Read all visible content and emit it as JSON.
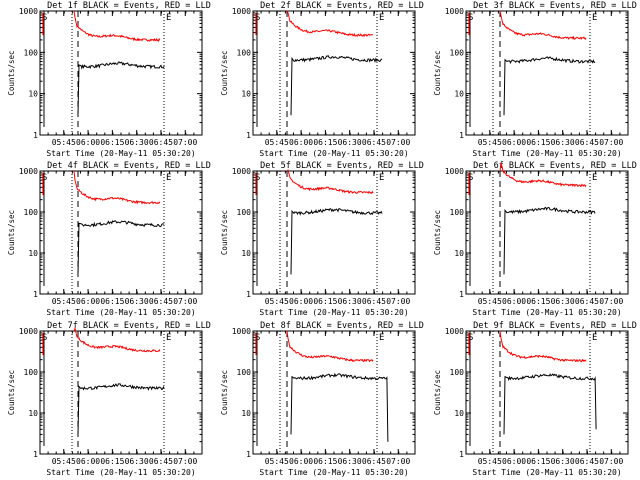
{
  "figure": {
    "background": "#ffffff",
    "axis_color": "#000000",
    "events_color": "#000000",
    "lld_color": "#ff0000"
  },
  "chart_data": [
    {
      "type": "line",
      "title": "Det 1f BLACK = Events, RED = LLD",
      "xlabel": "Start Time (20-May-11 05:30:20)",
      "ylabel": "Counts/sec",
      "xticks": [
        "05:45",
        "06:00",
        "06:15",
        "06:30",
        "06:45",
        "07:00"
      ],
      "yticks": [
        "1",
        "10",
        "100",
        "1000"
      ],
      "ylim": [
        1,
        1000
      ],
      "marker_S": "S",
      "marker_E": "E",
      "shape": "A",
      "lld_level": 200,
      "events_level": 45,
      "events_end": "06:47"
    },
    {
      "type": "line",
      "title": "Det 2f BLACK = Events, RED = LLD",
      "xlabel": "Start Time (20-May-11 05:30:20)",
      "ylabel": "Counts/sec",
      "xticks": [
        "05:45",
        "06:00",
        "06:15",
        "06:30",
        "06:45",
        "07:00"
      ],
      "yticks": [
        "1",
        "10",
        "100",
        "1000"
      ],
      "ylim": [
        1,
        1000
      ],
      "marker_S": "S",
      "marker_E": "E",
      "shape": "B",
      "lld_level": 260,
      "events_level": 65,
      "events_end": "06:50"
    },
    {
      "type": "line",
      "title": "Det 3f BLACK = Events, RED = LLD",
      "xlabel": "Start Time (20-May-11 05:30:20)",
      "ylabel": "Counts/sec",
      "xticks": [
        "05:45",
        "06:00",
        "06:15",
        "06:30",
        "06:45",
        "07:00"
      ],
      "yticks": [
        "1",
        "10",
        "100",
        "1000"
      ],
      "ylim": [
        1,
        1000
      ],
      "marker_S": "S",
      "marker_E": "E",
      "shape": "B",
      "lld_level": 220,
      "events_level": 60,
      "events_end": "06:50"
    },
    {
      "type": "line",
      "title": "Det 4f BLACK = Events, RED = LLD",
      "xlabel": "Start Time (20-May-11 05:30:20)",
      "ylabel": "Counts/sec",
      "xticks": [
        "05:45",
        "06:00",
        "06:15",
        "06:30",
        "06:45",
        "07:00"
      ],
      "yticks": [
        "1",
        "10",
        "100",
        "1000"
      ],
      "ylim": [
        1,
        1000
      ],
      "marker_S": "S",
      "marker_E": "E",
      "shape": "A",
      "lld_level": 170,
      "events_level": 48,
      "events_end": "06:47"
    },
    {
      "type": "line",
      "title": "Det 5f BLACK = Events, RED = LLD",
      "xlabel": "Start Time (20-May-11 05:30:20)",
      "ylabel": "Counts/sec",
      "xticks": [
        "05:45",
        "06:00",
        "06:15",
        "06:30",
        "06:45",
        "07:00"
      ],
      "yticks": [
        "1",
        "10",
        "100",
        "1000"
      ],
      "ylim": [
        1,
        1000
      ],
      "marker_S": "S",
      "marker_E": "E",
      "shape": "B",
      "lld_level": 300,
      "events_level": 95,
      "events_end": "06:50"
    },
    {
      "type": "line",
      "title": "Det 6f BLACK = Events, RED = LLD",
      "xlabel": "Start Time (20-May-11 05:30:20)",
      "ylabel": "Counts/sec",
      "xticks": [
        "05:45",
        "06:00",
        "06:15",
        "06:30",
        "06:45",
        "07:00"
      ],
      "yticks": [
        "1",
        "10",
        "100",
        "1000"
      ],
      "ylim": [
        1,
        1000
      ],
      "marker_S": "S",
      "marker_E": "E",
      "shape": "B",
      "lld_level": 450,
      "events_level": 100,
      "events_end": "06:50"
    },
    {
      "type": "line",
      "title": "Det 7f BLACK = Events, RED = LLD",
      "xlabel": "Start Time (20-May-11 05:30:20)",
      "ylabel": "Counts/sec",
      "xticks": [
        "05:45",
        "06:00",
        "06:15",
        "06:30",
        "06:45",
        "07:00"
      ],
      "yticks": [
        "1",
        "10",
        "100",
        "1000"
      ],
      "ylim": [
        1,
        1000
      ],
      "marker_S": "S",
      "marker_E": "E",
      "shape": "A",
      "lld_level": 330,
      "events_level": 40,
      "events_end": "06:47"
    },
    {
      "type": "line",
      "title": "Det 8f BLACK = Events, RED = LLD",
      "xlabel": "Start Time (20-May-11 05:30:20)",
      "ylabel": "Counts/sec",
      "xticks": [
        "05:45",
        "06:00",
        "06:15",
        "06:30",
        "06:45",
        "07:00"
      ],
      "yticks": [
        "1",
        "10",
        "100",
        "1000"
      ],
      "ylim": [
        1,
        1000
      ],
      "marker_S": "S",
      "marker_E": "E",
      "shape": "B",
      "lld_level": 190,
      "events_level": 70,
      "events_end": "06:53",
      "events_drop": 2
    },
    {
      "type": "line",
      "title": "Det 9f BLACK = Events, RED = LLD",
      "xlabel": "Start Time (20-May-11 05:30:20)",
      "ylabel": "Counts/sec",
      "xticks": [
        "05:45",
        "06:00",
        "06:15",
        "06:30",
        "06:45",
        "07:00"
      ],
      "yticks": [
        "1",
        "10",
        "100",
        "1000"
      ],
      "ylim": [
        1,
        1000
      ],
      "marker_S": "S",
      "marker_E": "E",
      "shape": "B",
      "lld_level": 190,
      "events_level": 70,
      "events_end": "06:50",
      "events_drop": 4
    }
  ]
}
